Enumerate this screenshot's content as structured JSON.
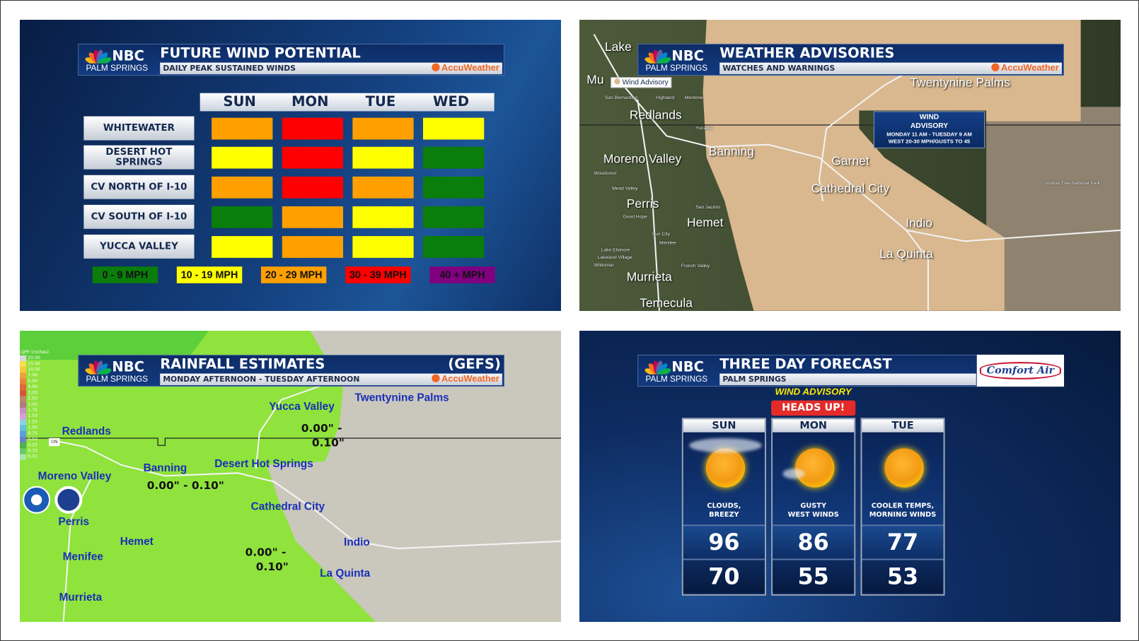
{
  "brand": {
    "network": "NBC",
    "station": "PALM SPRINGS",
    "partner": "AccuWeather"
  },
  "wind": {
    "title": "FUTURE WIND POTENTIAL",
    "subtitle": "DAILY PEAK SUSTAINED WINDS",
    "days": [
      "SUN",
      "MON",
      "TUE",
      "WED"
    ],
    "rows": [
      {
        "label": "WHITEWATER",
        "levels": [
          "20-29",
          "30-39",
          "20-29",
          "10-19"
        ]
      },
      {
        "label": "DESERT HOT SPRINGS",
        "levels": [
          "10-19",
          "30-39",
          "10-19",
          "0-9"
        ]
      },
      {
        "label": "CV NORTH OF I-10",
        "levels": [
          "20-29",
          "30-39",
          "20-29",
          "0-9"
        ]
      },
      {
        "label": "CV SOUTH OF I-10",
        "levels": [
          "0-9",
          "20-29",
          "10-19",
          "0-9"
        ]
      },
      {
        "label": "YUCCA VALLEY",
        "levels": [
          "10-19",
          "20-29",
          "10-19",
          "0-9"
        ]
      }
    ],
    "legend": [
      {
        "key": "0-9",
        "label": "0 - 9 MPH",
        "color": "#0a7d0a"
      },
      {
        "key": "10-19",
        "label": "10 - 19 MPH",
        "color": "#ffff00"
      },
      {
        "key": "20-29",
        "label": "20 - 29 MPH",
        "color": "#ffa000"
      },
      {
        "key": "30-39",
        "label": "30 - 39 MPH",
        "color": "#ff0000"
      },
      {
        "key": "40+",
        "label": "40 + MPH",
        "color": "#800080"
      }
    ]
  },
  "advisories": {
    "title": "WEATHER ADVISORIES",
    "subtitle": "WATCHES AND WARNINGS",
    "legend_chip": "Wind Advisory",
    "box": {
      "line1": "WIND",
      "line2": "ADVISORY",
      "line3": "MONDAY 11 AM - TUESDAY 9 AM",
      "line4": "WEST 20-30 MPH/GUSTS TO 45"
    },
    "cities": [
      "Lake",
      "Mu",
      "Twentynine Palms",
      "Redlands",
      "Moreno Valley",
      "Banning",
      "Garnet",
      "Cathedral City",
      "Perris",
      "Hemet",
      "Indio",
      "La Quinta",
      "Murrieta",
      "Temecula"
    ],
    "small_labels": [
      "San Bernardino",
      "Highland",
      "Mentone",
      "Yucaipa",
      "Mead Valley",
      "Good Hope",
      "San Jacinto",
      "Sun City",
      "Menifee",
      "Lake Elsinore",
      "Lakeland Village",
      "Wildomar",
      "French Valley",
      "Joshua Tree National Park",
      "Woodcrest"
    ],
    "colors": {
      "advisory": "#d9b88f"
    }
  },
  "rainfall": {
    "title": "RAINFALL ESTIMATES",
    "model": "(GEFS)",
    "subtitle": "MONDAY AFTERNOON - TUESDAY AFTERNOON",
    "legend_title": "QPF (inches)",
    "legend_values": [
      "20.00",
      "15.00",
      "10.00",
      "7.00",
      "5.00",
      "4.00",
      "3.00",
      "2.50",
      "2.00",
      "1.75",
      "1.50",
      "1.25",
      "1.00",
      "0.75",
      "0.50",
      "0.25",
      "0.10",
      "0.01"
    ],
    "cities": [
      "Yucca Valley",
      "Twentynine Palms",
      "Redlands",
      "Desert Hot Springs",
      "Banning",
      "Moreno Valley",
      "Cathedral City",
      "Perris",
      "Hemet",
      "Indio",
      "Menifee",
      "La Quinta",
      "Murrieta"
    ],
    "amounts": {
      "north": [
        "0.00\" -",
        "0.10\""
      ],
      "west": "0.00\" - 0.10\"",
      "south": [
        "0.00\" -",
        "0.10\""
      ]
    },
    "state_tag": "ON",
    "logos": [
      "NOAA",
      "National Weather Service"
    ]
  },
  "forecast": {
    "title": "THREE DAY FORECAST",
    "subtitle": "PALM SPRINGS",
    "sponsor": "Comfort Air",
    "alert_top": "WIND ADVISORY",
    "alert": "HEADS UP!",
    "days": [
      {
        "day": "SUN",
        "icon": "sun-clouds-icon",
        "cond1": "CLOUDS,",
        "cond2": "BREEZY",
        "high": "96",
        "low": "70"
      },
      {
        "day": "MON",
        "icon": "sun-wind-icon",
        "cond1": "GUSTY",
        "cond2": "WEST WINDS",
        "high": "86",
        "low": "55"
      },
      {
        "day": "TUE",
        "icon": "sun-icon",
        "cond1": "COOLER TEMPS,",
        "cond2": "MORNING WINDS",
        "high": "77",
        "low": "53"
      }
    ]
  }
}
